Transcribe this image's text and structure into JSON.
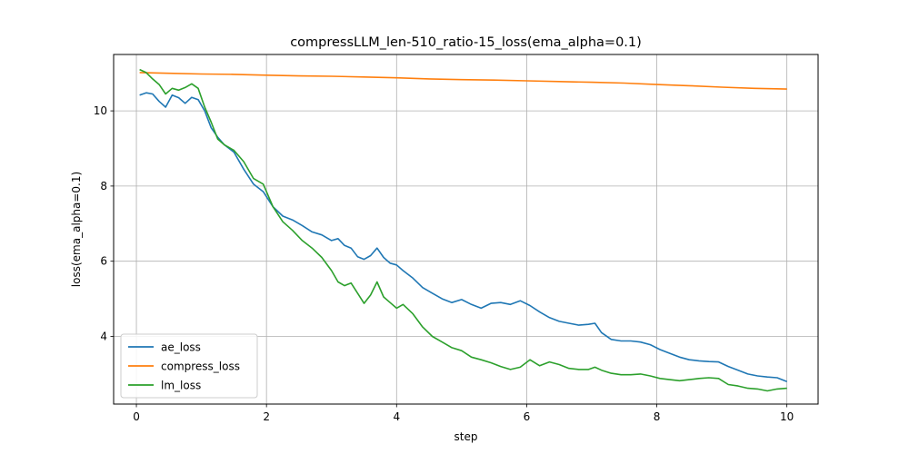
{
  "chart_data": {
    "type": "line",
    "title": "compressLLM_len-510_ratio-15_loss(ema_alpha=0.1)",
    "xlabel": "step",
    "ylabel": "loss(ema_alpha=0.1)",
    "xlim": [
      -0.35,
      10.48
    ],
    "ylim": [
      2.2,
      11.5
    ],
    "xticks": [
      0,
      2,
      4,
      6,
      8,
      10
    ],
    "yticks": [
      4,
      6,
      8,
      10
    ],
    "grid": true,
    "legend_position": "lower-left",
    "series": [
      {
        "name": "ae_loss",
        "color": "#1f77b4",
        "x": [
          0.05,
          0.15,
          0.25,
          0.35,
          0.45,
          0.55,
          0.65,
          0.75,
          0.85,
          0.95,
          1.05,
          1.15,
          1.25,
          1.35,
          1.5,
          1.65,
          1.8,
          1.95,
          2.1,
          2.25,
          2.4,
          2.55,
          2.7,
          2.85,
          3.0,
          3.1,
          3.2,
          3.3,
          3.4,
          3.5,
          3.6,
          3.7,
          3.8,
          3.9,
          4.0,
          4.1,
          4.25,
          4.4,
          4.55,
          4.7,
          4.85,
          5.0,
          5.15,
          5.3,
          5.45,
          5.6,
          5.75,
          5.9,
          6.05,
          6.2,
          6.35,
          6.5,
          6.65,
          6.8,
          6.95,
          7.05,
          7.15,
          7.3,
          7.45,
          7.6,
          7.75,
          7.9,
          8.05,
          8.2,
          8.35,
          8.5,
          8.65,
          8.8,
          8.95,
          9.1,
          9.25,
          9.4,
          9.55,
          9.7,
          9.85,
          10.0
        ],
        "y": [
          10.42,
          10.48,
          10.45,
          10.25,
          10.1,
          10.42,
          10.35,
          10.2,
          10.36,
          10.3,
          10.0,
          9.55,
          9.3,
          9.1,
          8.9,
          8.45,
          8.05,
          7.85,
          7.45,
          7.2,
          7.1,
          6.95,
          6.78,
          6.7,
          6.55,
          6.6,
          6.42,
          6.35,
          6.12,
          6.05,
          6.15,
          6.35,
          6.1,
          5.95,
          5.9,
          5.75,
          5.55,
          5.3,
          5.15,
          5.0,
          4.9,
          4.98,
          4.85,
          4.75,
          4.88,
          4.9,
          4.85,
          4.95,
          4.82,
          4.65,
          4.5,
          4.4,
          4.35,
          4.3,
          4.32,
          4.35,
          4.1,
          3.92,
          3.88,
          3.88,
          3.85,
          3.78,
          3.65,
          3.55,
          3.45,
          3.38,
          3.35,
          3.33,
          3.32,
          3.2,
          3.1,
          3.0,
          2.95,
          2.92,
          2.9,
          2.8
        ]
      },
      {
        "name": "compress_loss",
        "color": "#ff7f0e",
        "x": [
          0.05,
          0.5,
          1.0,
          1.5,
          2.0,
          2.5,
          3.0,
          3.5,
          4.0,
          4.5,
          5.0,
          5.5,
          6.0,
          6.5,
          7.0,
          7.5,
          8.0,
          8.5,
          9.0,
          9.5,
          10.0
        ],
        "y": [
          11.02,
          11.0,
          10.98,
          10.97,
          10.95,
          10.93,
          10.92,
          10.9,
          10.88,
          10.85,
          10.83,
          10.82,
          10.8,
          10.78,
          10.76,
          10.74,
          10.7,
          10.67,
          10.63,
          10.6,
          10.58
        ]
      },
      {
        "name": "lm_loss",
        "color": "#2ca02c",
        "x": [
          0.05,
          0.15,
          0.25,
          0.35,
          0.45,
          0.55,
          0.65,
          0.75,
          0.85,
          0.95,
          1.05,
          1.15,
          1.25,
          1.35,
          1.5,
          1.65,
          1.8,
          1.95,
          2.1,
          2.25,
          2.4,
          2.55,
          2.7,
          2.85,
          3.0,
          3.1,
          3.2,
          3.3,
          3.4,
          3.5,
          3.6,
          3.7,
          3.8,
          3.9,
          4.0,
          4.1,
          4.25,
          4.4,
          4.55,
          4.7,
          4.85,
          5.0,
          5.15,
          5.3,
          5.45,
          5.6,
          5.75,
          5.9,
          6.05,
          6.2,
          6.35,
          6.5,
          6.65,
          6.8,
          6.95,
          7.05,
          7.15,
          7.3,
          7.45,
          7.6,
          7.75,
          7.9,
          8.05,
          8.2,
          8.35,
          8.5,
          8.65,
          8.8,
          8.95,
          9.1,
          9.25,
          9.4,
          9.55,
          9.7,
          9.85,
          10.0
        ],
        "y": [
          11.1,
          11.02,
          10.85,
          10.7,
          10.45,
          10.6,
          10.55,
          10.62,
          10.72,
          10.6,
          10.1,
          9.7,
          9.25,
          9.1,
          8.95,
          8.65,
          8.2,
          8.05,
          7.45,
          7.05,
          6.82,
          6.55,
          6.35,
          6.1,
          5.75,
          5.45,
          5.35,
          5.42,
          5.15,
          4.88,
          5.1,
          5.45,
          5.05,
          4.9,
          4.75,
          4.85,
          4.6,
          4.25,
          4.0,
          3.85,
          3.7,
          3.62,
          3.45,
          3.38,
          3.3,
          3.2,
          3.12,
          3.18,
          3.38,
          3.22,
          3.32,
          3.25,
          3.15,
          3.12,
          3.12,
          3.18,
          3.1,
          3.02,
          2.98,
          2.98,
          3.0,
          2.95,
          2.88,
          2.85,
          2.82,
          2.85,
          2.88,
          2.9,
          2.88,
          2.72,
          2.68,
          2.62,
          2.6,
          2.55,
          2.6,
          2.62
        ]
      }
    ]
  }
}
